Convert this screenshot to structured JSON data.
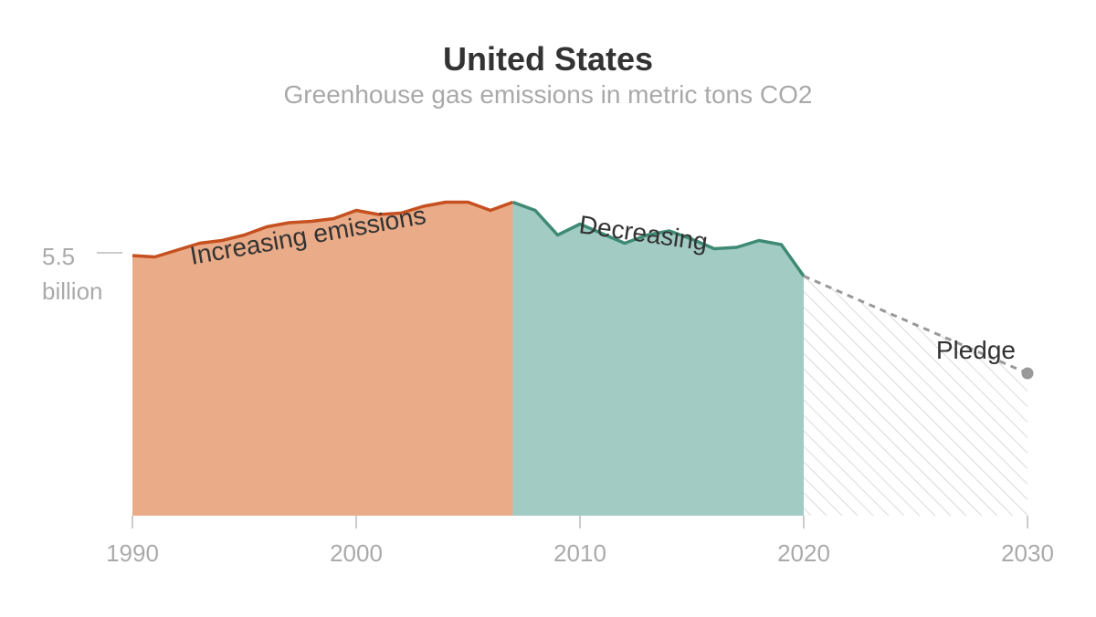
{
  "chart_data": {
    "type": "area",
    "title": "United States",
    "subtitle": "Greenhouse gas emissions in metric tons CO2",
    "y_reference": {
      "value": 5.5,
      "label_value": "5.5",
      "label_unit": "billion"
    },
    "x_ticks": [
      "1990",
      "2000",
      "2010",
      "2020",
      "2030"
    ],
    "xlim": [
      1990,
      2030
    ],
    "ylim": [
      3.6,
      6.3
    ],
    "x": [
      1990,
      1991,
      1992,
      1993,
      1994,
      1995,
      1996,
      1997,
      1998,
      1999,
      2000,
      2001,
      2002,
      2003,
      2004,
      2005,
      2006,
      2007,
      2008,
      2009,
      2010,
      2011,
      2012,
      2013,
      2014,
      2015,
      2016,
      2017,
      2018,
      2019,
      2020
    ],
    "values": [
      5.5,
      5.49,
      5.54,
      5.59,
      5.61,
      5.65,
      5.71,
      5.74,
      5.75,
      5.77,
      5.83,
      5.8,
      5.81,
      5.86,
      5.89,
      5.89,
      5.83,
      5.89,
      5.83,
      5.65,
      5.73,
      5.66,
      5.59,
      5.65,
      5.68,
      5.62,
      5.55,
      5.56,
      5.61,
      5.58,
      5.35
    ],
    "series": [
      {
        "name": "Increasing emissions",
        "range": [
          1990,
          2007
        ],
        "color": "#e9ab88",
        "line_color": "#c6501f"
      },
      {
        "name": "Decreasing",
        "range": [
          2007,
          2020
        ],
        "color": "#a2cbc4",
        "line_color": "#3f8a74"
      },
      {
        "name": "Pledge",
        "x": [
          2020,
          2030
        ],
        "values": [
          5.35,
          4.64
        ],
        "style": "dashed, hatched",
        "color": "#999999"
      }
    ]
  }
}
